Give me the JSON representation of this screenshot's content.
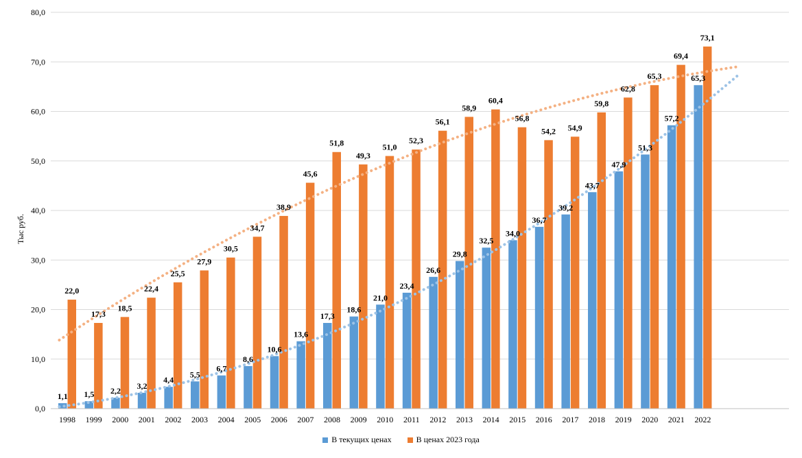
{
  "chart_data": {
    "type": "bar",
    "ylabel": "Тыс руб.",
    "ylim": [
      0,
      80
    ],
    "ytick_step": 10,
    "ytick_labels": [
      "0,0",
      "10,0",
      "20,0",
      "30,0",
      "40,0",
      "50,0",
      "60,0",
      "70,0",
      "80,0"
    ],
    "categories": [
      "1998",
      "1999",
      "2000",
      "2001",
      "2002",
      "2003",
      "2004",
      "2005",
      "2006",
      "2007",
      "2008",
      "2009",
      "2010",
      "2011",
      "2012",
      "2013",
      "2014",
      "2015",
      "2016",
      "2017",
      "2018",
      "2019",
      "2020",
      "2021",
      "2022"
    ],
    "series": [
      {
        "name": "В текущих ценах",
        "color": "#5B9BD5",
        "values": [
          1.1,
          1.5,
          2.2,
          3.2,
          4.4,
          5.5,
          6.7,
          8.6,
          10.6,
          13.6,
          17.3,
          18.6,
          21.0,
          23.4,
          26.6,
          29.8,
          32.5,
          34.0,
          36.7,
          39.2,
          43.7,
          47.9,
          51.3,
          57.2,
          65.3
        ],
        "labels": [
          "1,1",
          "1,5",
          "2,2",
          "3,2",
          "4,4",
          "5,5",
          "6,7",
          "8,6",
          "10,6",
          "13,6",
          "17,3",
          "18,6",
          "21,0",
          "23,4",
          "26,6",
          "29,8",
          "32,5",
          "34,0",
          "36,7",
          "39,2",
          "43,7",
          "47,9",
          "51,3",
          "57,2",
          "65,3"
        ],
        "trendline": "polynomial",
        "trend_color": "#9DC3E6"
      },
      {
        "name": "В ценах 2023 года",
        "color": "#ED7D31",
        "values": [
          22.0,
          17.3,
          18.5,
          22.4,
          25.5,
          27.9,
          30.5,
          34.7,
          38.9,
          45.6,
          51.8,
          49.3,
          51.0,
          52.3,
          56.1,
          58.9,
          60.4,
          56.8,
          54.2,
          54.9,
          59.8,
          62.8,
          65.3,
          69.4,
          73.1
        ],
        "labels": [
          "22,0",
          "17,3",
          "18,5",
          "22,4",
          "25,5",
          "27,9",
          "30,5",
          "34,7",
          "38,9",
          "45,6",
          "51,8",
          "49,3",
          "51,0",
          "52,3",
          "56,1",
          "58,9",
          "60,4",
          "56,8",
          "54,2",
          "54,9",
          "59,8",
          "62,8",
          "65,3",
          "69,4",
          "73,1"
        ],
        "trendline": "polynomial",
        "trend_color": "#F4B183"
      }
    ],
    "legend": [
      "В текущих ценах",
      "В ценах 2023 года"
    ],
    "legend_position": "bottom",
    "grid": true
  }
}
